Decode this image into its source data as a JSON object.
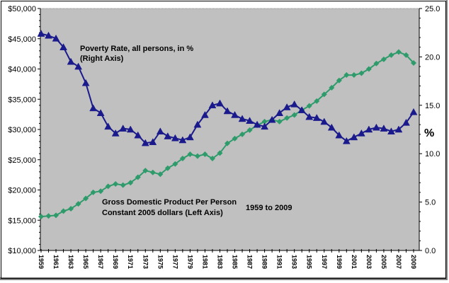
{
  "chart_data": {
    "type": "line",
    "title": "",
    "x": [
      1959,
      1960,
      1961,
      1962,
      1963,
      1964,
      1965,
      1966,
      1967,
      1968,
      1969,
      1970,
      1971,
      1972,
      1973,
      1974,
      1975,
      1976,
      1977,
      1978,
      1979,
      1980,
      1981,
      1982,
      1983,
      1984,
      1985,
      1986,
      1987,
      1988,
      1989,
      1990,
      1991,
      1992,
      1993,
      1994,
      1995,
      1996,
      1997,
      1998,
      1999,
      2000,
      2001,
      2002,
      2003,
      2004,
      2005,
      2006,
      2007,
      2008,
      2009
    ],
    "x_tick_labels": [
      "1959",
      "1961",
      "1963",
      "1965",
      "1967",
      "1969",
      "1971",
      "1973",
      "1975",
      "1977",
      "1979",
      "1981",
      "1983",
      "1985",
      "1987",
      "1989",
      "1991",
      "1993",
      "1995",
      "1997",
      "1999",
      "2001",
      "2003",
      "2005",
      "2007",
      "2009"
    ],
    "left_axis": {
      "label": "",
      "range": [
        10000,
        50000
      ],
      "tick_labels": [
        "$10,000",
        "$15,000",
        "$20,000",
        "$25,000",
        "$30,000",
        "$35,000",
        "$40,000",
        "$45,000",
        "$50,000"
      ],
      "tick_values": [
        10000,
        15000,
        20000,
        25000,
        30000,
        35000,
        40000,
        45000,
        50000
      ]
    },
    "right_axis": {
      "label": "%",
      "range": [
        0,
        25
      ],
      "tick_labels": [
        "0.0",
        "5.0",
        "10.0",
        "15.0",
        "20.0",
        "25.0"
      ],
      "tick_values": [
        0,
        5,
        10,
        15,
        20,
        25
      ]
    },
    "series": [
      {
        "name": "Poverty Rate, all persons, in %",
        "axis": "right",
        "color": "#1a1a8c",
        "marker": "triangle",
        "values": [
          22.4,
          22.2,
          21.9,
          21.0,
          19.5,
          19.0,
          17.3,
          14.7,
          14.2,
          12.8,
          12.1,
          12.6,
          12.5,
          11.9,
          11.1,
          11.2,
          12.3,
          11.8,
          11.6,
          11.4,
          11.7,
          13.0,
          14.0,
          15.0,
          15.2,
          14.4,
          14.0,
          13.6,
          13.4,
          13.0,
          12.8,
          13.5,
          14.2,
          14.8,
          15.1,
          14.5,
          13.8,
          13.7,
          13.3,
          12.7,
          11.9,
          11.3,
          11.7,
          12.1,
          12.5,
          12.7,
          12.6,
          12.3,
          12.5,
          13.2,
          14.3
        ]
      },
      {
        "name": "Gross Domestic Product Per Person Constant 2005 dollars",
        "axis": "left",
        "color": "#2e9b6b",
        "marker": "diamond",
        "values": [
          15600,
          15700,
          15800,
          16500,
          16900,
          17700,
          18600,
          19600,
          19800,
          20600,
          21000,
          20800,
          21200,
          22100,
          23200,
          22900,
          22600,
          23600,
          24300,
          25200,
          25900,
          25600,
          25900,
          25200,
          26100,
          27700,
          28500,
          29200,
          29900,
          30700,
          31300,
          31600,
          31300,
          31900,
          32400,
          33200,
          33900,
          34700,
          35800,
          36900,
          38100,
          39000,
          39000,
          39300,
          40000,
          40900,
          41600,
          42300,
          42800,
          42300,
          41000
        ]
      }
    ],
    "annotations": {
      "poverty_line1": "Poverty  Rate, all persons, in %",
      "poverty_line2": "(Right Axis)",
      "gdp_line1": "Gross Domestic Product Per Person",
      "gdp_line2": "Constant 2005 dollars (Left Axis)",
      "period": "1959 to 2009"
    },
    "grid": false,
    "legend": "none"
  }
}
